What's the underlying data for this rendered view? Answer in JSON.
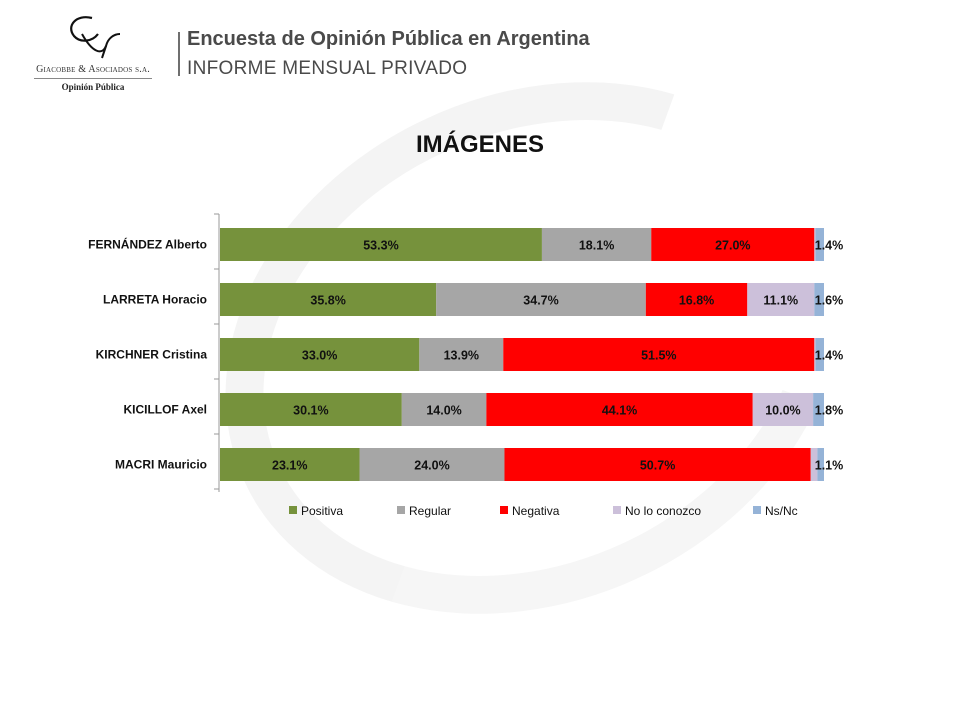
{
  "header": {
    "logo_name": "Giacobbe & Asociados s.a.",
    "logo_sub": "Opinión Pública",
    "title": "Encuesta de Opinión Pública en Argentina",
    "subtitle": "INFORME MENSUAL PRIVADO"
  },
  "chart_data": {
    "type": "bar",
    "orientation": "horizontal",
    "stacked": "100%",
    "title": "IMÁGENES",
    "categories": [
      "FERNÁNDEZ Alberto",
      "LARRETA Horacio",
      "KIRCHNER Cristina",
      "KICILLOF Axel",
      "MACRI Mauricio"
    ],
    "series": [
      {
        "name": "Positiva",
        "color": "#76923c",
        "values": [
          53.3,
          35.8,
          33.0,
          30.1,
          23.1
        ],
        "labels": [
          "53.3%",
          "35.8%",
          "33.0%",
          "30.1%",
          "23.1%"
        ]
      },
      {
        "name": "Regular",
        "color": "#a6a6a6",
        "values": [
          18.1,
          34.7,
          13.9,
          14.0,
          24.0
        ],
        "labels": [
          "18.1%",
          "34.7%",
          "13.9%",
          "14.0%",
          "24.0%"
        ]
      },
      {
        "name": "Negativa",
        "color": "#ff0000",
        "values": [
          27.0,
          16.8,
          51.5,
          44.1,
          50.7
        ],
        "labels": [
          "27.0%",
          "16.8%",
          "51.5%",
          "44.1%",
          "50.7%"
        ]
      },
      {
        "name": "No lo conozco",
        "color": "#ccc0da",
        "values": [
          0.2,
          11.1,
          0.2,
          10.0,
          1.1
        ],
        "labels": [
          "",
          "11.1%",
          "",
          "10.0%",
          ""
        ]
      },
      {
        "name": "Ns/Nc",
        "color": "#95b3d7",
        "values": [
          1.4,
          1.6,
          1.4,
          1.8,
          1.1
        ],
        "labels": [
          "1.4%",
          "1.6%",
          "1.4%",
          "1.8%",
          "1.1%"
        ]
      }
    ],
    "xlim": [
      0,
      100
    ],
    "legend": "bottom",
    "grid": false
  }
}
